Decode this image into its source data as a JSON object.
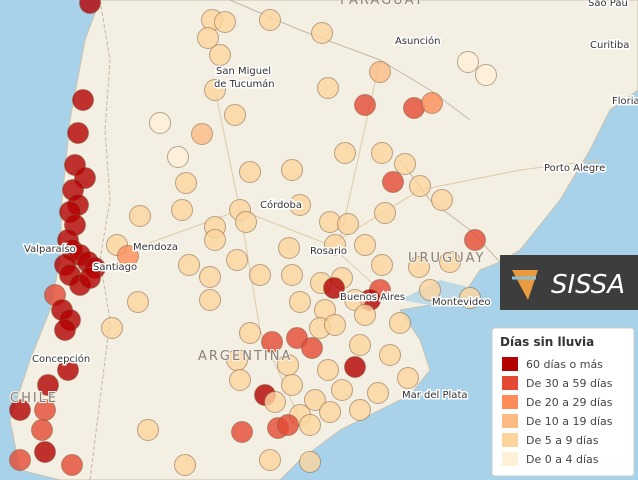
{
  "map": {
    "places": [
      "PARAGUAY",
      "Sao Pau",
      "Asunción",
      "Curitiba",
      "San Miguel",
      "de Tucumán",
      "Floria",
      "Porto Alegre",
      "Córdoba",
      "Mendoza",
      "Valparaíso",
      "Santiago",
      "Rosario",
      "URUGUAY",
      "Buenos Aires",
      "Montevideo",
      "ARGENTINA",
      "Concepción",
      "CHILE",
      "Mar del Plata"
    ]
  },
  "logo": {
    "text": "SISSA"
  },
  "legend": {
    "title": "Días sin lluvia",
    "items": [
      {
        "label": "60 días o más",
        "color": "#b30000"
      },
      {
        "label": "De 30 a 59 días",
        "color": "#e34a33"
      },
      {
        "label": "De 20 a 29 días",
        "color": "#fc8d59"
      },
      {
        "label": "De 10 a 19 días",
        "color": "#fdbb84"
      },
      {
        "label": "De 5 a 9 días",
        "color": "#fdd49e"
      },
      {
        "label": "De 0 a 4 días",
        "color": "#fef0d9"
      }
    ]
  }
}
